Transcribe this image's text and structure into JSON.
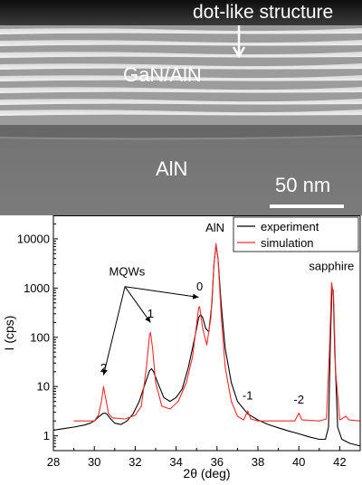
{
  "tem": {
    "annotation": "dot-like structure",
    "layer_top": "GaN/AlN",
    "layer_bottom": "AlN",
    "scale_bar": "50 nm"
  },
  "colors": {
    "experiment": "#000000",
    "simulation": "#ff2a2a"
  },
  "chart_data": {
    "type": "line",
    "xlabel": "2θ (deg)",
    "ylabel": "I (cps)",
    "xlim": [
      28,
      43
    ],
    "ylim": [
      0.5,
      30000
    ],
    "yscale": "log",
    "xticks": [
      28,
      30,
      32,
      34,
      36,
      38,
      40,
      42
    ],
    "yticks": [
      {
        "value": 1,
        "label": "1"
      },
      {
        "value": 10,
        "label": "10"
      },
      {
        "value": 100,
        "label": "100"
      },
      {
        "value": 1000,
        "label": "1000"
      },
      {
        "value": 10000,
        "label": "10000"
      }
    ],
    "legend_position": "top-right",
    "series": [
      {
        "name": "experiment",
        "points": [
          [
            28.0,
            1.3
          ],
          [
            28.5,
            1.4
          ],
          [
            29.0,
            1.5
          ],
          [
            29.5,
            1.65
          ],
          [
            29.8,
            1.8
          ],
          [
            30.0,
            2.0
          ],
          [
            30.2,
            2.4
          ],
          [
            30.4,
            2.8
          ],
          [
            30.5,
            2.9
          ],
          [
            30.6,
            2.8
          ],
          [
            30.8,
            2.2
          ],
          [
            31.0,
            1.8
          ],
          [
            31.3,
            1.7
          ],
          [
            31.6,
            2.0
          ],
          [
            31.9,
            2.8
          ],
          [
            32.2,
            5
          ],
          [
            32.5,
            12
          ],
          [
            32.7,
            21
          ],
          [
            32.8,
            23
          ],
          [
            32.9,
            20
          ],
          [
            33.1,
            12
          ],
          [
            33.4,
            6
          ],
          [
            33.7,
            5
          ],
          [
            34.0,
            6
          ],
          [
            34.3,
            9
          ],
          [
            34.6,
            25
          ],
          [
            34.8,
            60
          ],
          [
            35.0,
            150
          ],
          [
            35.1,
            250
          ],
          [
            35.2,
            290
          ],
          [
            35.3,
            250
          ],
          [
            35.45,
            150
          ],
          [
            35.6,
            130
          ],
          [
            35.75,
            500
          ],
          [
            35.85,
            3000
          ],
          [
            35.95,
            7500
          ],
          [
            36.05,
            4000
          ],
          [
            36.2,
            500
          ],
          [
            36.4,
            60
          ],
          [
            36.7,
            12
          ],
          [
            37.0,
            5
          ],
          [
            37.5,
            2.8
          ],
          [
            38.0,
            2.1
          ],
          [
            38.5,
            1.7
          ],
          [
            39.0,
            1.45
          ],
          [
            39.5,
            1.25
          ],
          [
            40.0,
            1.1
          ],
          [
            40.5,
            0.95
          ],
          [
            41.0,
            0.85
          ],
          [
            41.3,
            0.85
          ],
          [
            41.45,
            1.5
          ],
          [
            41.55,
            100
          ],
          [
            41.62,
            1000
          ],
          [
            41.68,
            900
          ],
          [
            41.75,
            60
          ],
          [
            41.9,
            1.5
          ],
          [
            42.1,
            0.85
          ],
          [
            42.5,
            0.7
          ],
          [
            43.0,
            0.62
          ]
        ]
      },
      {
        "name": "simulation",
        "points": [
          [
            29.0,
            2.0
          ],
          [
            30.0,
            2.0
          ],
          [
            30.2,
            2.6
          ],
          [
            30.35,
            5
          ],
          [
            30.45,
            10
          ],
          [
            30.55,
            6
          ],
          [
            30.7,
            2.8
          ],
          [
            30.9,
            2.3
          ],
          [
            31.5,
            2.2
          ],
          [
            32.0,
            2.6
          ],
          [
            32.3,
            4
          ],
          [
            32.55,
            25
          ],
          [
            32.7,
            110
          ],
          [
            32.75,
            125
          ],
          [
            32.85,
            60
          ],
          [
            33.0,
            12
          ],
          [
            33.3,
            4
          ],
          [
            33.7,
            3.5
          ],
          [
            34.1,
            5
          ],
          [
            34.5,
            12
          ],
          [
            34.8,
            40
          ],
          [
            35.0,
            180
          ],
          [
            35.1,
            400
          ],
          [
            35.15,
            420
          ],
          [
            35.3,
            150
          ],
          [
            35.5,
            70
          ],
          [
            35.7,
            250
          ],
          [
            35.85,
            3000
          ],
          [
            35.95,
            8000
          ],
          [
            36.05,
            4000
          ],
          [
            36.2,
            300
          ],
          [
            36.4,
            25
          ],
          [
            36.7,
            5
          ],
          [
            37.0,
            2.5
          ],
          [
            37.3,
            2.1
          ],
          [
            37.5,
            3.2
          ],
          [
            37.65,
            2.2
          ],
          [
            38.0,
            2.0
          ],
          [
            39.0,
            2.0
          ],
          [
            39.8,
            2.0
          ],
          [
            40.0,
            2.9
          ],
          [
            40.15,
            2.1
          ],
          [
            41.0,
            2.0
          ],
          [
            41.35,
            2.2
          ],
          [
            41.5,
            60
          ],
          [
            41.6,
            1300
          ],
          [
            41.7,
            700
          ],
          [
            41.8,
            20
          ],
          [
            42.0,
            2.1
          ],
          [
            42.3,
            2.5
          ],
          [
            42.45,
            2.1
          ],
          [
            43.0,
            2.0
          ]
        ]
      }
    ],
    "annotations": [
      {
        "text": "AlN",
        "x": 35.9,
        "y": 14000
      },
      {
        "text": "sapphire",
        "x": 41.6,
        "y": 2300
      },
      {
        "text": "MQWs",
        "x": 31.6,
        "y": 1800
      },
      {
        "text": "0",
        "x": 35.15,
        "y": 900
      },
      {
        "text": "1",
        "x": 32.75,
        "y": 250
      },
      {
        "text": "2",
        "x": 30.45,
        "y": 20
      },
      {
        "text": "-1",
        "x": 37.5,
        "y": 5.5
      },
      {
        "text": "-2",
        "x": 40.0,
        "y": 4.5
      }
    ]
  }
}
